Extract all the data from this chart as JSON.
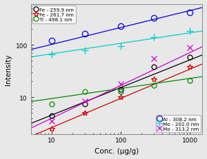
{
  "title": "",
  "xlabel": "Conc. (μg/g)",
  "ylabel": "Intensity",
  "xlim": [
    5,
    1500
  ],
  "ylim": [
    2,
    600
  ],
  "background_color": "#e8e8e8",
  "series": [
    {
      "label": "Fe - 259.9 nm",
      "color": "#000000",
      "marker": "o",
      "markersize": 5,
      "fillstyle": "none",
      "x": [
        10,
        30,
        100,
        300,
        1000
      ],
      "y": [
        4.5,
        7.5,
        14,
        38,
        58
      ],
      "fit_logx": [
        0.6,
        3.2
      ],
      "fit_logy": [
        0.45,
        1.82
      ]
    },
    {
      "label": "Fe - 261.7 nm",
      "color": "#cc0000",
      "marker": "*",
      "markersize": 6,
      "fillstyle": "none",
      "x": [
        10,
        30,
        100,
        300,
        1000
      ],
      "y": [
        2.5,
        5.0,
        10,
        22,
        38
      ],
      "fit_logx": [
        0.6,
        3.2
      ],
      "fit_logy": [
        0.2,
        1.65
      ]
    },
    {
      "label": "Ti - 498.1 nm",
      "color": "#008800",
      "marker": "o",
      "markersize": 5,
      "fillstyle": "none",
      "x": [
        10,
        30,
        100,
        300,
        1000
      ],
      "y": [
        7.5,
        13,
        13,
        17,
        21
      ],
      "fit_logx": [
        0.6,
        3.2
      ],
      "fit_logy": [
        0.9,
        1.4
      ]
    },
    {
      "label": "Al - 308.2 nm",
      "color": "#0000dd",
      "marker": "o",
      "markersize": 6,
      "fillstyle": "none",
      "x": [
        10,
        30,
        100,
        300,
        1000
      ],
      "y": [
        120,
        165,
        230,
        330,
        420
      ],
      "fit_logx": [
        0.6,
        3.2
      ],
      "fit_logy": [
        1.88,
        2.72
      ]
    },
    {
      "label": "Mo - 202.0 nm",
      "color": "#00cccc",
      "marker": "+",
      "markersize": 7,
      "fillstyle": "full",
      "x": [
        10,
        30,
        100,
        300,
        1000
      ],
      "y": [
        65,
        78,
        95,
        140,
        185
      ],
      "fit_logx": [
        0.6,
        3.2
      ],
      "fit_logy": [
        1.75,
        2.27
      ]
    },
    {
      "label": "Mo - 313.2 nm",
      "color": "#cc00cc",
      "marker": "x",
      "markersize": 6,
      "fillstyle": "full",
      "x": [
        10,
        30,
        100,
        300,
        1000
      ],
      "y": [
        3.5,
        8.5,
        18,
        55,
        90
      ],
      "fit_logx": [
        0.6,
        3.2
      ],
      "fit_logy": [
        0.35,
        1.98
      ]
    }
  ],
  "legend1_indices": [
    0,
    1,
    2
  ],
  "legend2_indices": [
    3,
    4,
    5
  ]
}
